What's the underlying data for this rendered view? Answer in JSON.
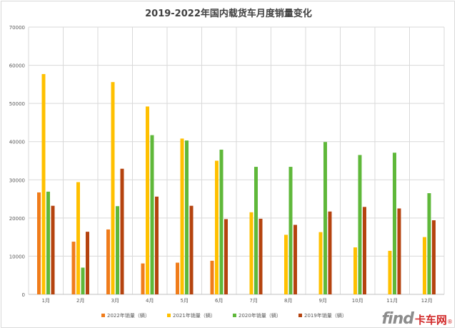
{
  "chart_data": {
    "type": "bar",
    "title": "2019-2022年国内载货车月度销量变化",
    "xlabel": "",
    "ylabel": "",
    "ylim": [
      0,
      70000
    ],
    "yticks": [
      0,
      10000,
      20000,
      30000,
      40000,
      50000,
      60000,
      70000
    ],
    "grid": true,
    "legend_position": "bottom",
    "categories": [
      "1月",
      "2月",
      "3月",
      "4月",
      "5月",
      "6月",
      "7月",
      "8月",
      "9月",
      "10月",
      "11月",
      "12月"
    ],
    "series": [
      {
        "name": "2022年销量（辆）",
        "color": "#f07c1b",
        "values": [
          26700,
          13800,
          17000,
          8100,
          8300,
          8800,
          null,
          null,
          null,
          null,
          null,
          null
        ]
      },
      {
        "name": "2021年销量（辆）",
        "color": "#ffc000",
        "values": [
          57700,
          29400,
          55600,
          49200,
          40800,
          35000,
          21500,
          15600,
          16300,
          12300,
          11400,
          15000
        ]
      },
      {
        "name": "2020年销量（辆）",
        "color": "#5fb83a",
        "values": [
          26900,
          7000,
          23100,
          41700,
          40300,
          37900,
          33400,
          33400,
          39900,
          36500,
          37100,
          26500
        ]
      },
      {
        "name": "2019年销量（辆）",
        "color": "#b5430f",
        "values": [
          23200,
          16400,
          32900,
          25600,
          23200,
          19700,
          19800,
          18200,
          21700,
          22900,
          22500,
          19400
        ]
      }
    ]
  },
  "watermark": {
    "latin": "find",
    "cn": "卡车网",
    "dot": "®"
  }
}
